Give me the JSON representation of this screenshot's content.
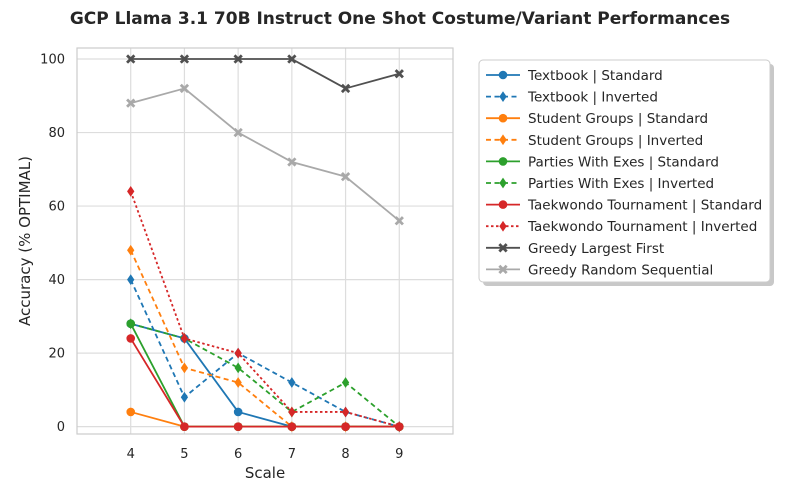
{
  "chart_data": {
    "type": "line",
    "title": "GCP Llama 3.1 70B Instruct One Shot Costume/Variant Performances",
    "xlabel": "Scale",
    "ylabel": "Accuracy (% OPTIMAL)",
    "x": [
      4,
      5,
      6,
      7,
      8,
      9
    ],
    "xticks": [
      "4",
      "5",
      "6",
      "7",
      "8",
      "9"
    ],
    "yticks": [
      "0",
      "20",
      "40",
      "60",
      "80",
      "100"
    ],
    "xlim": [
      3,
      10
    ],
    "ylim": [
      -2,
      103
    ],
    "grid": true,
    "legend_position": "outside-right",
    "series": [
      {
        "name": "Textbook | Standard",
        "values": [
          28,
          24,
          4,
          0,
          0,
          0
        ],
        "color": "#1f77b4",
        "dash": "solid",
        "marker": "circle"
      },
      {
        "name": "Textbook | Inverted",
        "values": [
          40,
          8,
          20,
          12,
          4,
          0
        ],
        "color": "#1f77b4",
        "dash": "dashed",
        "marker": "diamond"
      },
      {
        "name": "Student Groups | Standard",
        "values": [
          4,
          0,
          0,
          0,
          0,
          0
        ],
        "color": "#ff7f0e",
        "dash": "solid",
        "marker": "circle"
      },
      {
        "name": "Student Groups | Inverted",
        "values": [
          48,
          16,
          12,
          0,
          0,
          0
        ],
        "color": "#ff7f0e",
        "dash": "dashed",
        "marker": "diamond"
      },
      {
        "name": "Parties With Exes | Standard",
        "values": [
          28,
          0,
          0,
          0,
          0,
          0
        ],
        "color": "#2ca02c",
        "dash": "solid",
        "marker": "circle"
      },
      {
        "name": "Parties With Exes | Inverted",
        "values": [
          28,
          24,
          16,
          4,
          12,
          0
        ],
        "color": "#2ca02c",
        "dash": "dashed",
        "marker": "diamond"
      },
      {
        "name": "Taekwondo Tournament | Standard",
        "values": [
          24,
          0,
          0,
          0,
          0,
          0
        ],
        "color": "#d62728",
        "dash": "solid",
        "marker": "circle"
      },
      {
        "name": "Taekwondo Tournament | Inverted",
        "values": [
          64,
          24,
          20,
          4,
          4,
          0
        ],
        "color": "#d62728",
        "dash": "dotted",
        "marker": "diamond"
      },
      {
        "name": "Greedy Largest First",
        "values": [
          100,
          100,
          100,
          100,
          92,
          96
        ],
        "color": "#505050",
        "dash": "solid",
        "marker": "x"
      },
      {
        "name": "Greedy Random Sequential",
        "values": [
          88,
          92,
          80,
          72,
          68,
          56
        ],
        "color": "#a9a9a9",
        "dash": "solid",
        "marker": "x"
      }
    ]
  }
}
